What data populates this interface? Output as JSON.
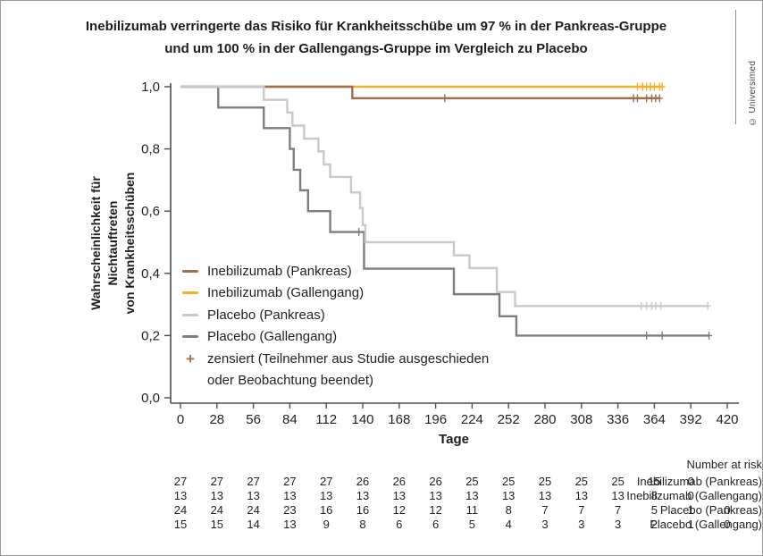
{
  "title": {
    "line1": "Inebilizumab verringerte das Risiko für Krankheitsschübe um 97 % in der Pankreas-Gruppe",
    "line2": "und um 100 % in der Gallengangs-Gruppe im Vergleich zu Placebo"
  },
  "watermark": "© Universimed",
  "chart_data": {
    "type": "line",
    "subtype": "kaplan-meier-step-curves",
    "grid": false,
    "xlabel": "Tage",
    "ylabel": "Wahrscheinlichkeit für Nichtauftreten von Krankheitsschüben",
    "ylabel_lines": [
      "Wahrscheinlichkeit für Nichtauftreten",
      "von Krankheitsschüben"
    ],
    "xlim": [
      0,
      420
    ],
    "ylim": [
      0.0,
      1.0
    ],
    "x_ticks": [
      0,
      28,
      56,
      84,
      112,
      140,
      168,
      196,
      224,
      252,
      280,
      308,
      336,
      364,
      392,
      420
    ],
    "y_ticks": [
      {
        "value": 1.0,
        "label": "1,0"
      },
      {
        "value": 0.8,
        "label": "0,8"
      },
      {
        "value": 0.6,
        "label": "0,6"
      },
      {
        "value": 0.4,
        "label": "0,4"
      },
      {
        "value": 0.2,
        "label": "0,2"
      },
      {
        "value": 0.0,
        "label": "0,0"
      }
    ],
    "legend_position": "inside-middle-left",
    "draw_order": [
      1,
      0,
      3,
      2
    ],
    "series": [
      {
        "name": "Inebilizumab (Pankreas)",
        "color": "#A16C4C",
        "start": [
          0,
          1.0
        ],
        "steps": [
          [
            132,
            0.963
          ]
        ],
        "end_day": 368,
        "censor_marks": [
          [
            203,
            0.963
          ],
          [
            348,
            0.963
          ],
          [
            351,
            0.963
          ],
          [
            358,
            0.963
          ],
          [
            362,
            0.963
          ],
          [
            365,
            0.963
          ],
          [
            368,
            0.963
          ]
        ]
      },
      {
        "name": "Inebilizumab (Gallengang)",
        "color": "#F2B127",
        "start": [
          0,
          1.0
        ],
        "steps": [],
        "end_day": 370,
        "censor_marks": [
          [
            351,
            1.0
          ],
          [
            355,
            1.0
          ],
          [
            358,
            1.0
          ],
          [
            361,
            1.0
          ],
          [
            364,
            1.0
          ],
          [
            368,
            1.0
          ],
          [
            370,
            1.0
          ]
        ]
      },
      {
        "name": "Placebo (Pankreas)",
        "color": "#C9C9C9",
        "start": [
          0,
          1.0
        ],
        "steps": [
          [
            64,
            0.958
          ],
          [
            82,
            0.917
          ],
          [
            86,
            0.875
          ],
          [
            95,
            0.833
          ],
          [
            106,
            0.792
          ],
          [
            110,
            0.75
          ],
          [
            115,
            0.71
          ],
          [
            131,
            0.66
          ],
          [
            138,
            0.61
          ],
          [
            140,
            0.555
          ],
          [
            142,
            0.5
          ],
          [
            210,
            0.458
          ],
          [
            222,
            0.417
          ],
          [
            243,
            0.34
          ],
          [
            257,
            0.295
          ]
        ],
        "end_day": 405,
        "censor_marks": [
          [
            354,
            0.295
          ],
          [
            358,
            0.295
          ],
          [
            362,
            0.295
          ],
          [
            365,
            0.295
          ],
          [
            369,
            0.295
          ],
          [
            405,
            0.295
          ]
        ]
      },
      {
        "name": "Placebo (Gallengang)",
        "color": "#7E7E7E",
        "start": [
          0,
          1.0
        ],
        "steps": [
          [
            29,
            0.933
          ],
          [
            64,
            0.867
          ],
          [
            84,
            0.8
          ],
          [
            87,
            0.733
          ],
          [
            92,
            0.667
          ],
          [
            98,
            0.6
          ],
          [
            115,
            0.533
          ],
          [
            141,
            0.415
          ],
          [
            210,
            0.333
          ],
          [
            245,
            0.262
          ],
          [
            258,
            0.2
          ]
        ],
        "end_day": 406,
        "censor_marks": [
          [
            137,
            0.533
          ],
          [
            358,
            0.2
          ],
          [
            370,
            0.2
          ],
          [
            406,
            0.2
          ]
        ]
      }
    ],
    "censor_legend": {
      "symbol": "+",
      "color": "#A8734E",
      "label_line1": "zensiert (Teilnehmer aus Studie ausgeschieden",
      "label_line2": "oder Beobachtung beendet)"
    }
  },
  "risk_table": {
    "header": "Number at risk",
    "rows": [
      {
        "label": "Inebilizumab (Pankreas)",
        "values": [
          27,
          27,
          27,
          27,
          27,
          26,
          26,
          26,
          25,
          25,
          25,
          25,
          25,
          15,
          0
        ]
      },
      {
        "label": "Inebilizumab (Gallengang)",
        "values": [
          13,
          13,
          13,
          13,
          13,
          13,
          13,
          13,
          13,
          13,
          13,
          13,
          13,
          8,
          0
        ]
      },
      {
        "label": "Placebo (Pankreas)",
        "values": [
          24,
          24,
          24,
          23,
          16,
          16,
          12,
          12,
          11,
          8,
          7,
          7,
          7,
          5,
          1,
          0
        ]
      },
      {
        "label": "Placebo (Gallengang)",
        "values": [
          15,
          15,
          14,
          13,
          9,
          8,
          6,
          6,
          5,
          4,
          3,
          3,
          3,
          2,
          1,
          0
        ]
      }
    ]
  }
}
